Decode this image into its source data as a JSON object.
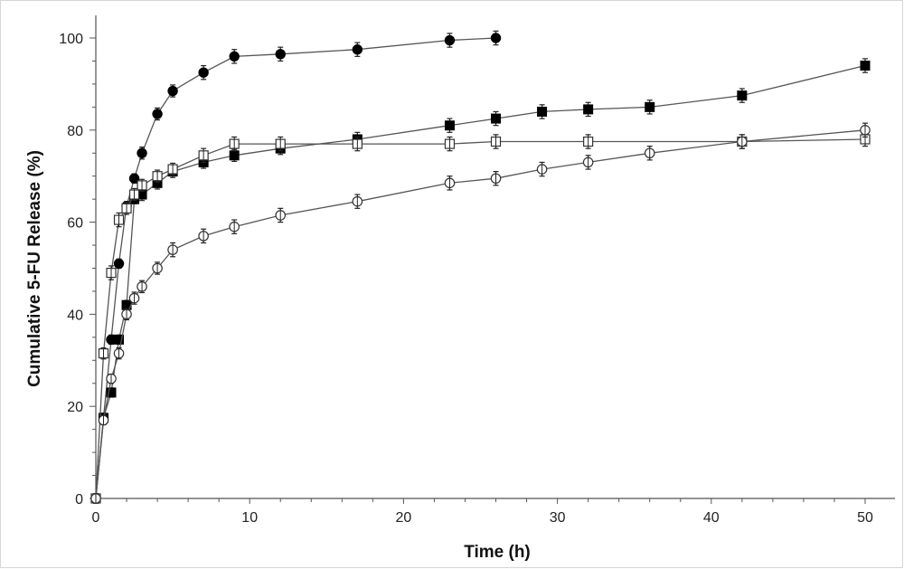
{
  "chart_data": {
    "type": "scatter",
    "title": "",
    "xlabel": "Time (h)",
    "ylabel": "Cumulative 5-FU Release (%)",
    "xlim": [
      0,
      52
    ],
    "ylim": [
      0,
      100
    ],
    "xticks": [
      0,
      10,
      20,
      30,
      40,
      50
    ],
    "yticks": [
      0,
      20,
      40,
      60,
      80,
      100
    ],
    "grid": false,
    "legend": "none",
    "series": [
      {
        "marker": "filled-circle",
        "x": [
          0,
          0.5,
          1,
          1.5,
          2,
          2.5,
          3,
          4,
          5,
          7,
          9,
          12,
          17,
          23,
          26
        ],
        "y": [
          0,
          17.5,
          34.5,
          51,
          63.5,
          69.5,
          75,
          83.5,
          88.5,
          92.5,
          96,
          96.5,
          97.5,
          99.5,
          100
        ],
        "err": [
          1,
          1,
          1,
          1,
          1,
          1,
          1.3,
          1.3,
          1.3,
          1.5,
          1.5,
          1.5,
          1.5,
          1.5,
          1.5
        ]
      },
      {
        "marker": "filled-square",
        "x": [
          0,
          0.5,
          1,
          1.5,
          2,
          2.5,
          3,
          4,
          5,
          7,
          9,
          12,
          17,
          23,
          26,
          29,
          32,
          36,
          42,
          50
        ],
        "y": [
          0,
          17.5,
          23,
          34.5,
          42,
          65,
          66,
          68.5,
          71,
          73,
          74.5,
          76,
          78,
          81,
          82.5,
          84,
          84.5,
          85,
          87.5,
          94
        ],
        "err": [
          1,
          1,
          1,
          1,
          1,
          1,
          1.3,
          1.3,
          1.3,
          1.3,
          1.3,
          1.3,
          1.5,
          1.5,
          1.5,
          1.5,
          1.5,
          1.5,
          1.5,
          1.5
        ]
      },
      {
        "marker": "open-square",
        "x": [
          0,
          0.5,
          1,
          1.5,
          2,
          2.5,
          3,
          4,
          5,
          7,
          9,
          12,
          17,
          23,
          26,
          32,
          42,
          50
        ],
        "y": [
          0,
          31.5,
          49,
          60.5,
          63,
          66,
          68,
          70,
          71.5,
          74.5,
          77,
          77,
          77,
          77,
          77.5,
          77.5,
          77.5,
          78
        ],
        "err": [
          1,
          1.2,
          1.5,
          1.5,
          1.3,
          1.3,
          1.3,
          1.3,
          1.3,
          1.5,
          1.5,
          1.5,
          1.5,
          1.5,
          1.5,
          1.5,
          1.5,
          1.5
        ]
      },
      {
        "marker": "open-circle",
        "x": [
          0,
          0.5,
          1,
          1.5,
          2,
          2.5,
          3,
          4,
          5,
          7,
          9,
          12,
          17,
          23,
          26,
          29,
          32,
          36,
          42,
          50
        ],
        "y": [
          0,
          17,
          26,
          31.5,
          40,
          43.5,
          46,
          50,
          54,
          57,
          59,
          61.5,
          64.5,
          68.5,
          69.5,
          71.5,
          73,
          75,
          77.5,
          80
        ],
        "err": [
          1,
          1,
          1,
          1.2,
          1.2,
          1.3,
          1.3,
          1.3,
          1.5,
          1.5,
          1.5,
          1.5,
          1.5,
          1.5,
          1.5,
          1.5,
          1.5,
          1.5,
          1.5,
          1.5
        ]
      }
    ]
  }
}
